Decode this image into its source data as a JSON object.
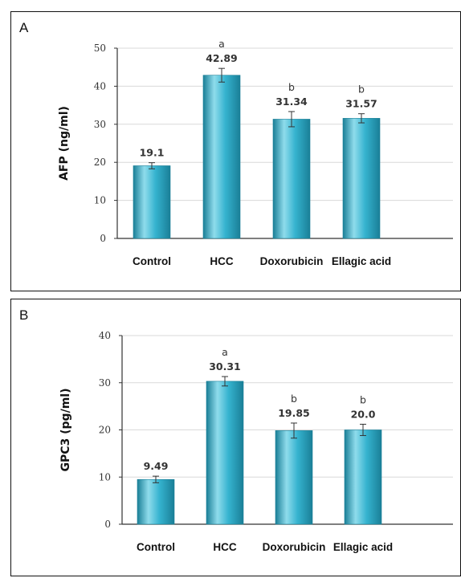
{
  "colors": {
    "bar_fill": "#35b3cf",
    "bar_highlight": "#8fdcec",
    "bar_shadow": "#1a7f97",
    "axis": "#333333",
    "grid": "#d9d9d9"
  },
  "chart_data": [
    {
      "panel_label": "A",
      "type": "bar",
      "ylabel": "AFP (ng/ml)",
      "xlabel": "",
      "categories": [
        "Control",
        "HCC",
        "Doxorubicin",
        "Ellagic acid"
      ],
      "values": [
        19.1,
        42.89,
        31.34,
        31.57
      ],
      "value_labels": [
        "19.1",
        "42.89",
        "31.34",
        "31.57"
      ],
      "errors": [
        0.8,
        1.8,
        2.0,
        1.2
      ],
      "significance": [
        "",
        "a",
        "b",
        "b"
      ],
      "ylim": [
        0,
        50
      ],
      "yticks": [
        "0",
        "10",
        "20",
        "30",
        "40",
        "50"
      ],
      "grid": true
    },
    {
      "panel_label": "B",
      "type": "bar",
      "ylabel": "GPC3 (pg/ml)",
      "xlabel": "",
      "categories": [
        "Control",
        "HCC",
        "Doxorubicin",
        "Ellagic acid"
      ],
      "values": [
        9.49,
        30.31,
        19.85,
        20.0
      ],
      "value_labels": [
        "9.49",
        "30.31",
        "19.85",
        "20.0"
      ],
      "errors": [
        0.7,
        1.0,
        1.6,
        1.2
      ],
      "significance": [
        "",
        "a",
        "b",
        "b"
      ],
      "ylim": [
        0,
        40
      ],
      "yticks": [
        "0",
        "10",
        "20",
        "30",
        "40"
      ],
      "grid": true
    }
  ]
}
